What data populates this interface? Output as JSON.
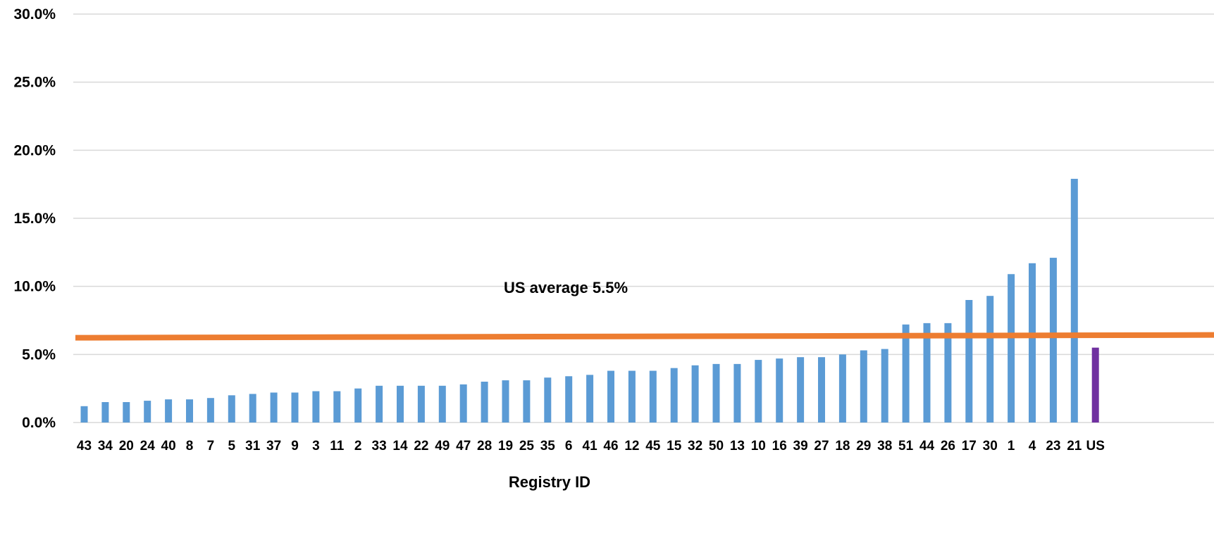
{
  "chart_data": {
    "type": "bar",
    "title": "",
    "xlabel": "Registry ID",
    "ylabel": "",
    "ylim": [
      0,
      30
    ],
    "y_ticks": [
      "0.0%",
      "5.0%",
      "10.0%",
      "15.0%",
      "20.0%",
      "25.0%",
      "30.0%"
    ],
    "grid": true,
    "categories": [
      "43",
      "34",
      "20",
      "24",
      "40",
      "8",
      "7",
      "5",
      "31",
      "37",
      "9",
      "3",
      "11",
      "2",
      "33",
      "14",
      "22",
      "49",
      "47",
      "28",
      "19",
      "25",
      "35",
      "6",
      "41",
      "46",
      "12",
      "45",
      "15",
      "32",
      "50",
      "13",
      "10",
      "16",
      "39",
      "27",
      "18",
      "29",
      "38",
      "51",
      "44",
      "26",
      "17",
      "30",
      "1",
      "4",
      "23",
      "21",
      "US"
    ],
    "values": [
      1.2,
      1.5,
      1.5,
      1.6,
      1.7,
      1.7,
      1.8,
      2.0,
      2.1,
      2.2,
      2.2,
      2.3,
      2.3,
      2.5,
      2.7,
      2.7,
      2.7,
      2.7,
      2.8,
      3.0,
      3.1,
      3.1,
      3.3,
      3.4,
      3.5,
      3.8,
      3.8,
      3.8,
      4.0,
      4.2,
      4.3,
      4.3,
      4.6,
      4.7,
      4.8,
      4.8,
      5.0,
      5.3,
      5.4,
      7.2,
      7.3,
      7.3,
      9.0,
      9.3,
      10.9,
      11.7,
      12.1,
      17.9,
      5.5
    ],
    "bar_color": "#5b9bd5",
    "highlight_color": "#7030a0",
    "average_line": {
      "value": 5.5,
      "label": "US average 5.5%",
      "color": "#ed7d31"
    }
  }
}
